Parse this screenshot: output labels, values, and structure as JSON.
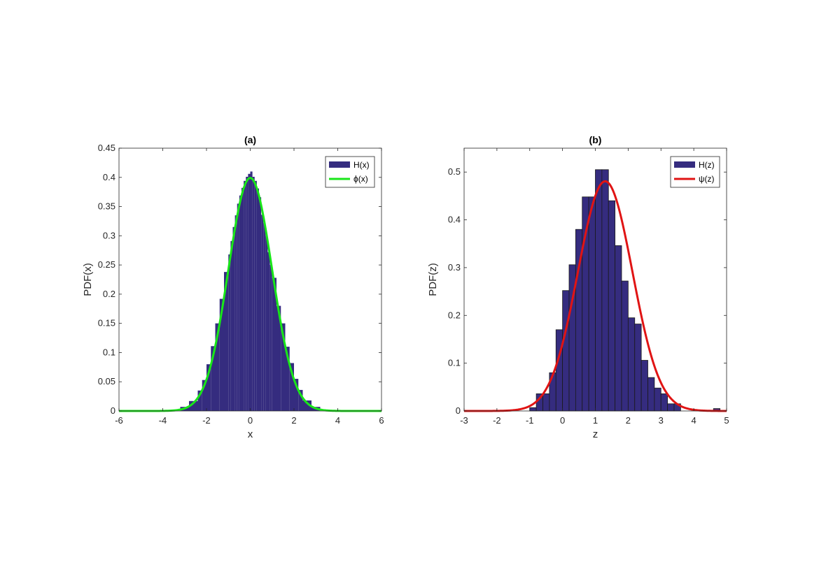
{
  "chart_data": [
    {
      "type": "bar",
      "title": "(a)",
      "xlabel": "x",
      "ylabel": "PDF(x)",
      "xlim": [
        -6,
        6
      ],
      "ylim": [
        0,
        0.45
      ],
      "xticks": [
        "-6",
        "-4",
        "-2",
        "0",
        "2",
        "4",
        "6"
      ],
      "yticks": [
        "0",
        "0.05",
        "0.1",
        "0.15",
        "0.2",
        "0.25",
        "0.3",
        "0.35",
        "0.4",
        "0.45"
      ],
      "grid": false,
      "legend_position": "top-right",
      "series": [
        {
          "name": "H(x)",
          "kind": "histogram",
          "color": "#352c7f",
          "bins": [
            [
              -3.2,
              -2.8,
              0.007
            ],
            [
              -2.8,
              -2.4,
              0.017
            ],
            [
              -2.4,
              -2.2,
              0.035
            ],
            [
              -2.2,
              -2.0,
              0.053
            ],
            [
              -2.0,
              -1.8,
              0.08
            ],
            [
              -1.8,
              -1.6,
              0.111
            ],
            [
              -1.6,
              -1.4,
              0.15
            ],
            [
              -1.4,
              -1.2,
              0.192
            ],
            [
              -1.2,
              -1.0,
              0.238
            ],
            [
              -1.0,
              -0.9,
              0.268
            ],
            [
              -0.9,
              -0.8,
              0.291
            ],
            [
              -0.8,
              -0.7,
              0.315
            ],
            [
              -0.7,
              -0.6,
              0.335
            ],
            [
              -0.6,
              -0.5,
              0.355
            ],
            [
              -0.5,
              -0.4,
              0.369
            ],
            [
              -0.4,
              -0.3,
              0.382
            ],
            [
              -0.3,
              -0.2,
              0.394
            ],
            [
              -0.2,
              -0.1,
              0.401
            ],
            [
              -0.1,
              0.0,
              0.406
            ],
            [
              0.0,
              0.1,
              0.41
            ],
            [
              0.1,
              0.2,
              0.401
            ],
            [
              0.2,
              0.3,
              0.394
            ],
            [
              0.3,
              0.4,
              0.381
            ],
            [
              0.4,
              0.5,
              0.366
            ],
            [
              0.5,
              0.6,
              0.336
            ],
            [
              0.6,
              0.7,
              0.322
            ],
            [
              0.7,
              0.8,
              0.3
            ],
            [
              0.8,
              0.9,
              0.272
            ],
            [
              0.9,
              1.0,
              0.25
            ],
            [
              1.0,
              1.2,
              0.228
            ],
            [
              1.2,
              1.4,
              0.18
            ],
            [
              1.4,
              1.6,
              0.15
            ],
            [
              1.6,
              1.8,
              0.11
            ],
            [
              1.8,
              2.0,
              0.082
            ],
            [
              2.0,
              2.2,
              0.055
            ],
            [
              2.2,
              2.4,
              0.036
            ],
            [
              2.4,
              2.8,
              0.018
            ],
            [
              2.8,
              3.2,
              0.007
            ]
          ]
        },
        {
          "name": "ϕ(x)",
          "kind": "line",
          "color": "#19e619",
          "mean": 0,
          "std": 1
        }
      ]
    },
    {
      "type": "bar",
      "title": "(b)",
      "xlabel": "z",
      "ylabel": "PDF(z)",
      "xlim": [
        -3,
        5
      ],
      "ylim": [
        0,
        0.55
      ],
      "xticks": [
        "-3",
        "-2",
        "-1",
        "0",
        "1",
        "2",
        "3",
        "4",
        "5"
      ],
      "yticks": [
        "0",
        "0.1",
        "0.2",
        "0.3",
        "0.4",
        "0.5"
      ],
      "grid": false,
      "legend_position": "top-right",
      "series": [
        {
          "name": "H(z)",
          "kind": "histogram",
          "color": "#352c7f",
          "bin_start": -1.0,
          "bin_width": 0.2,
          "values": [
            0.007,
            0.036,
            0.036,
            0.08,
            0.17,
            0.252,
            0.306,
            0.38,
            0.448,
            0.448,
            0.505,
            0.505,
            0.44,
            0.346,
            0.272,
            0.195,
            0.182,
            0.106,
            0.07,
            0.048,
            0.036,
            0.015,
            0.015,
            0.0,
            0.0,
            0.0,
            0.0,
            0.0,
            0.005
          ],
          "outliers": [
            [
              4.6,
              4.8,
              0.005
            ]
          ]
        },
        {
          "name": "ψ(z)",
          "kind": "line",
          "color": "#e01414",
          "mean": 1.3,
          "std": 0.83
        }
      ]
    }
  ]
}
